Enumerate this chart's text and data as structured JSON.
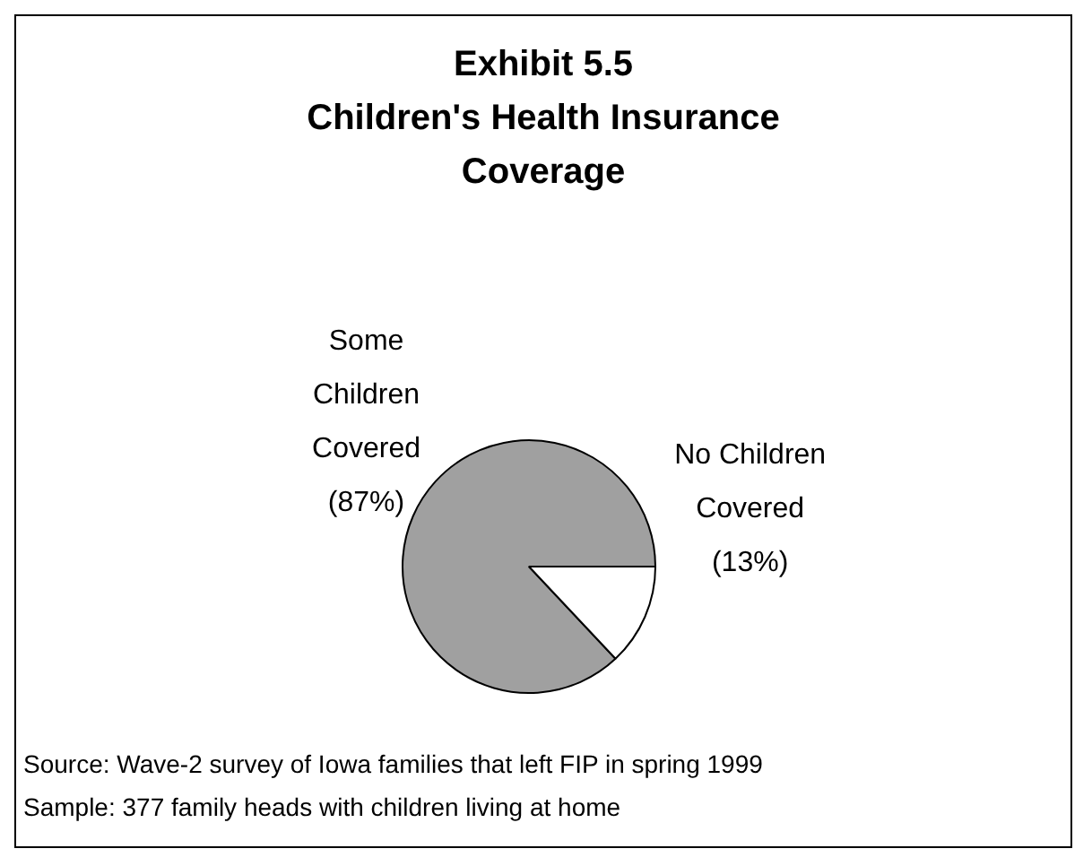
{
  "chart_data": {
    "type": "pie",
    "title": "Exhibit 5.5\nChildren's Health Insurance\nCoverage",
    "categories": [
      "Some Children Covered",
      "No Children Covered"
    ],
    "values": [
      87,
      13
    ],
    "value_labels": [
      "(87%)",
      "(13%)"
    ],
    "colors": [
      "#a0a0a0",
      "#ffffff"
    ],
    "annotations": [
      "Source: Wave-2 survey of Iowa families that left FIP in spring 1999",
      "Sample: 377 family heads with children living at home"
    ]
  }
}
